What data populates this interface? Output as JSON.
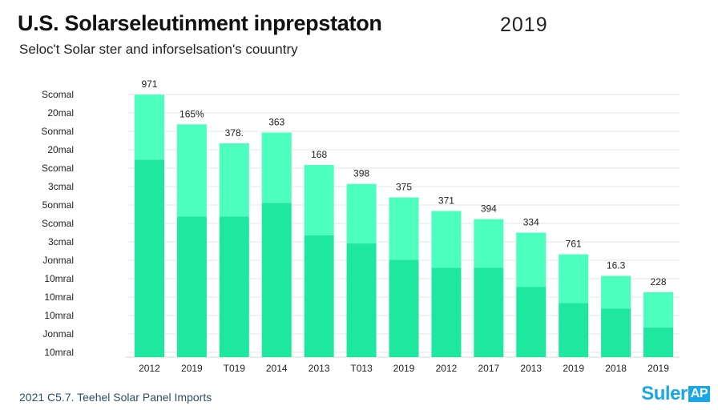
{
  "header": {
    "title": "U.S. Solarseleutinment inprepstaton",
    "year": "2019",
    "subtitle": "Seloc't Solar ster and inforselsation's couuntry"
  },
  "footer": {
    "source": "2021 C5.7. Teehel Solar Panel Imports",
    "logo_text": "Suler",
    "logo_badge": "AP"
  },
  "colors": {
    "bar_bottom": "#1ee8a0",
    "bar_top": "#4dffbe",
    "gridline": "#e4e4e4"
  },
  "chart_data": {
    "type": "bar",
    "stacked": true,
    "categories": [
      "2012",
      "2019",
      "T019",
      "2014",
      "2013",
      "T013",
      "2019",
      "2012",
      "2017",
      "2013",
      "2019",
      "2018",
      "2019"
    ],
    "value_labels": [
      "971",
      "165%",
      "378.",
      "363",
      "168",
      "398",
      "375",
      "371",
      "394",
      "334",
      "761",
      "16.3",
      "228"
    ],
    "y_tick_labels": [
      "Scomal",
      "20mal",
      "Sonmal",
      "20mal",
      "Scomal",
      "3cmal",
      "5onmal",
      "Scomal",
      "3cmal",
      "Jonmal",
      "10mral",
      "10mral",
      "10mral",
      "Jonmal",
      "10mral"
    ],
    "ylim": [
      0,
      100
    ],
    "series": [
      {
        "values": [
          73,
          52,
          52,
          57,
          45,
          42,
          36,
          33,
          33,
          26,
          20,
          18,
          11
        ]
      },
      {
        "values": [
          24,
          34,
          27,
          26,
          26,
          22,
          23,
          21,
          18,
          20,
          18,
          12,
          13
        ]
      }
    ],
    "grid": true,
    "legend": "none"
  }
}
